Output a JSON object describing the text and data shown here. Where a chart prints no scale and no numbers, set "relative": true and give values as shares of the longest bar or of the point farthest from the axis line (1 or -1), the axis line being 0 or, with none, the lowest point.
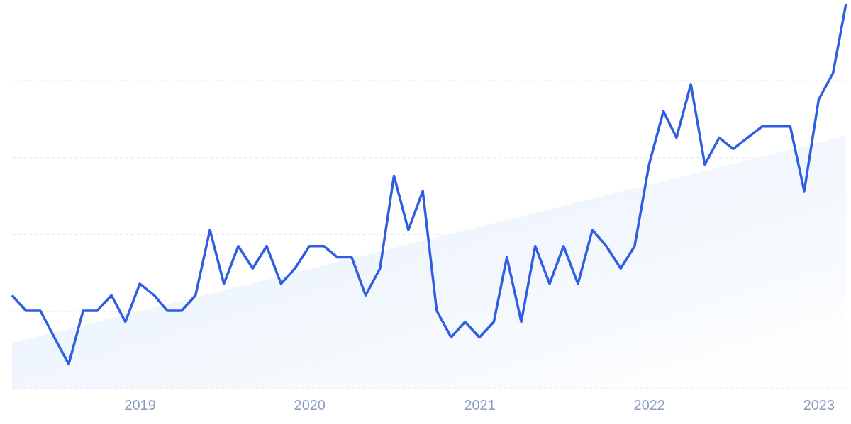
{
  "chart_data": {
    "type": "line",
    "relative": true,
    "grid": "y",
    "xlim": [
      "2018-04",
      "2023-03"
    ],
    "xticks": [
      "2019",
      "2020",
      "2021",
      "2022",
      "2023"
    ],
    "x": [
      "2018-04",
      "2018-05",
      "2018-06",
      "2018-07",
      "2018-08",
      "2018-09",
      "2018-10",
      "2018-11",
      "2018-12",
      "2019-01",
      "2019-02",
      "2019-03",
      "2019-04",
      "2019-05",
      "2019-06",
      "2019-07",
      "2019-08",
      "2019-09",
      "2019-10",
      "2019-11",
      "2019-12",
      "2020-01",
      "2020-02",
      "2020-03",
      "2020-04",
      "2020-05",
      "2020-06",
      "2020-07",
      "2020-08",
      "2020-09",
      "2020-10",
      "2020-11",
      "2020-12",
      "2021-01",
      "2021-02",
      "2021-03",
      "2021-04",
      "2021-05",
      "2021-06",
      "2021-07",
      "2021-08",
      "2021-09",
      "2021-10",
      "2021-11",
      "2021-12",
      "2022-01",
      "2022-02",
      "2022-03",
      "2022-04",
      "2022-05",
      "2022-06",
      "2022-07",
      "2022-08",
      "2022-09",
      "2022-10",
      "2022-11",
      "2022-12",
      "2023-01",
      "2023-02",
      "2023-03"
    ],
    "series": [
      {
        "type": "area",
        "color": "#e3eefb",
        "x": [
          "2018-04",
          "2023-03"
        ],
        "values": [
          0.117,
          0.656
        ]
      },
      {
        "color": "#2f5fe0",
        "values": [
          0.241,
          0.201,
          0.201,
          0.132,
          0.062,
          0.201,
          0.201,
          0.241,
          0.172,
          0.271,
          0.241,
          0.201,
          0.201,
          0.241,
          0.411,
          0.271,
          0.369,
          0.311,
          0.369,
          0.271,
          0.311,
          0.369,
          0.369,
          0.34,
          0.34,
          0.241,
          0.311,
          0.552,
          0.411,
          0.512,
          0.201,
          0.132,
          0.172,
          0.132,
          0.172,
          0.34,
          0.172,
          0.369,
          0.271,
          0.369,
          0.271,
          0.411,
          0.369,
          0.311,
          0.369,
          0.581,
          0.72,
          0.651,
          0.79,
          0.581,
          0.651,
          0.622,
          0.651,
          0.68,
          0.68,
          0.68,
          0.512,
          0.75,
          0.819,
          1.0
        ]
      }
    ]
  }
}
